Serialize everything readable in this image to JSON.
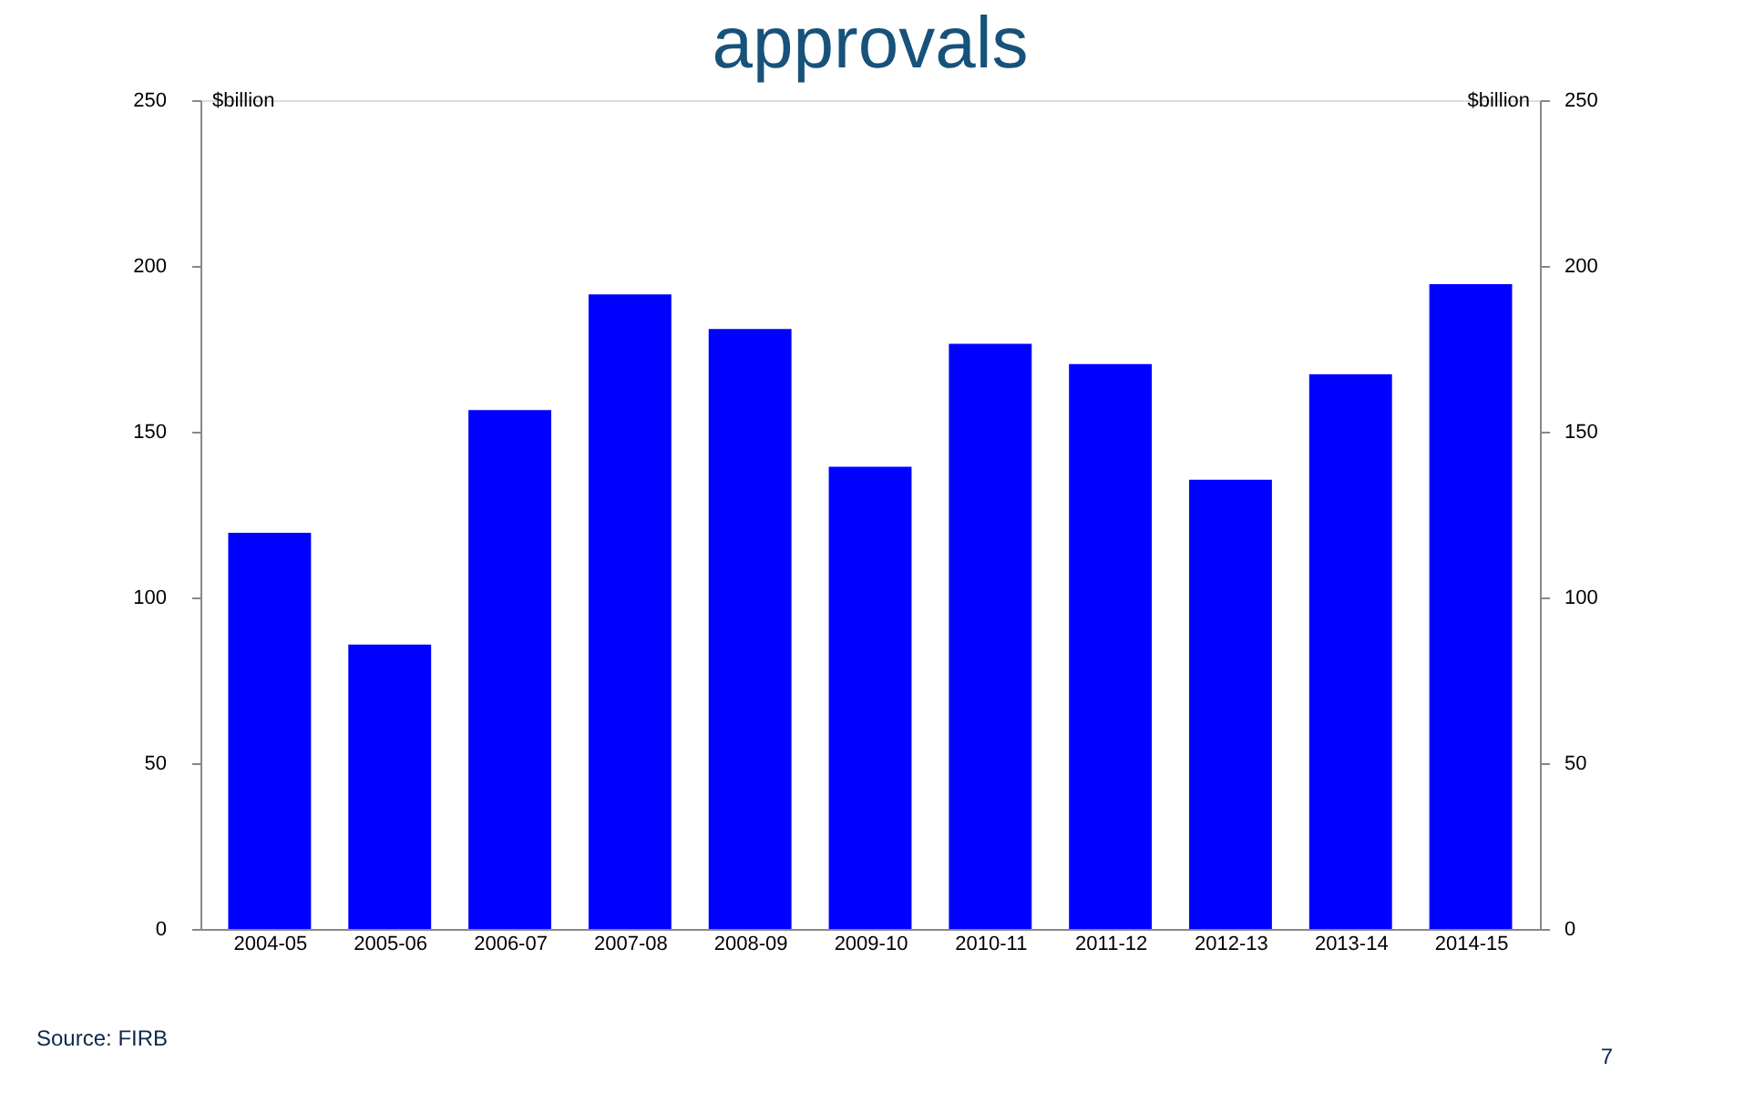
{
  "chart_data": {
    "type": "bar",
    "title": "approvals",
    "categories": [
      "2004-05",
      "2005-06",
      "2006-07",
      "2007-08",
      "2008-09",
      "2009-10",
      "2010-11",
      "2011-12",
      "2012-13",
      "2013-14",
      "2014-15"
    ],
    "values": [
      119.5,
      85.8,
      156.5,
      191.4,
      181,
      139.4,
      176.5,
      170.4,
      135.5,
      167.3,
      194.5
    ],
    "color": "#0000ff",
    "ylabel": "$billion",
    "y2label": "$billion",
    "ylim": [
      0,
      250
    ],
    "yticks": [
      0,
      50,
      100,
      150,
      200,
      250
    ],
    "y2lim": [
      0,
      250
    ],
    "y2ticks": [
      0,
      50,
      100,
      150,
      200,
      250
    ],
    "grid": false,
    "annotations": [
      "Source:  FIRB",
      "7"
    ]
  }
}
